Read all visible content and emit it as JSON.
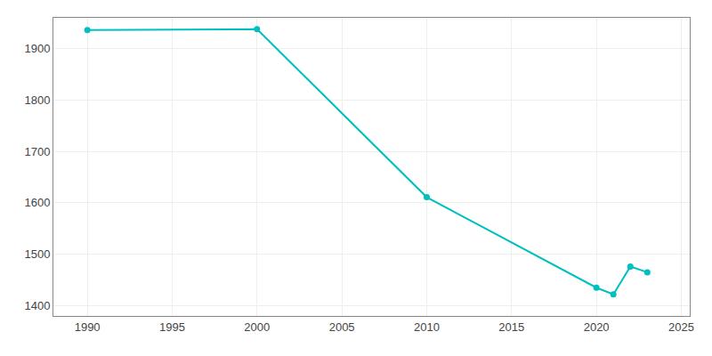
{
  "chart_data": {
    "type": "line",
    "x": [
      1990,
      2000,
      2010,
      2020,
      2021,
      2022,
      2023
    ],
    "values": [
      1936,
      1938,
      1611,
      1435,
      1422,
      1476,
      1465
    ],
    "color": "#00bfbf",
    "marker": "circle",
    "xlim": [
      1988,
      2025.5
    ],
    "ylim": [
      1380,
      1960
    ],
    "xticks": [
      1990,
      1995,
      2000,
      2005,
      2010,
      2015,
      2020,
      2025
    ],
    "yticks": [
      1400,
      1500,
      1600,
      1700,
      1800,
      1900
    ],
    "grid": true
  }
}
